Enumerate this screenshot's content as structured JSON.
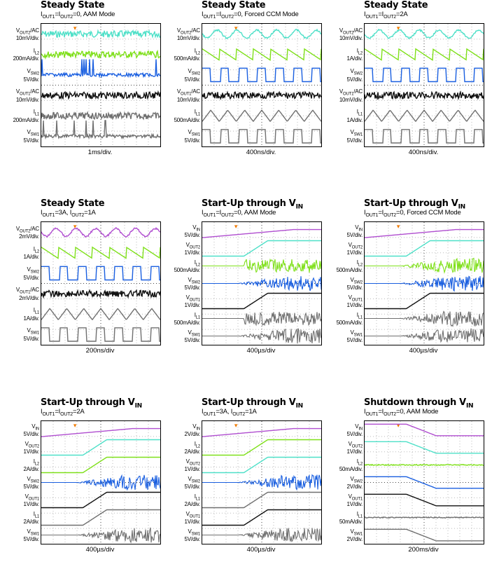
{
  "colors": {
    "purple": "#b04fd0",
    "cyan": "#4fe0c8",
    "green": "#7fe01a",
    "blue": "#1a5fe0",
    "black": "#111111",
    "gray": "#707070",
    "orange": "#f07a00"
  },
  "panels": [
    {
      "title_main": "Steady State",
      "title_sub": "",
      "cond": [
        [
          "I",
          "OUT1"
        ],
        [
          "=I",
          ""
        ],
        [
          "",
          "OUT2"
        ],
        [
          "=0, AAM Mode",
          ""
        ]
      ],
      "timebase": "1ms/div.",
      "traces": [
        {
          "sig": "V",
          "sub": "OUT2",
          "suffix": "/AC",
          "unit": "10mV/div.",
          "color": "cyan",
          "kind": "noise"
        },
        {
          "sig": "I",
          "sub": "L2",
          "suffix": "",
          "unit": "200mA/div.",
          "color": "green",
          "kind": "noise"
        },
        {
          "sig": "V",
          "sub": "SW2",
          "suffix": "",
          "unit": "5V/div.",
          "color": "blue",
          "kind": "spiky"
        },
        {
          "sig": "V",
          "sub": "OUT1",
          "suffix": "/AC",
          "unit": "10mV/div.",
          "color": "black",
          "kind": "noise"
        },
        {
          "sig": "I",
          "sub": "L1",
          "suffix": "",
          "unit": "200mA/div.",
          "color": "gray",
          "kind": "noise"
        },
        {
          "sig": "V",
          "sub": "SW1",
          "suffix": "",
          "unit": "5V/div.",
          "color": "gray",
          "kind": "spiky"
        }
      ]
    },
    {
      "title_main": "Steady State",
      "title_sub": "",
      "cond": [
        [
          "I",
          "OUT1"
        ],
        [
          "=I",
          ""
        ],
        [
          "",
          "OUT2"
        ],
        [
          "=0, Forced CCM Mode",
          ""
        ]
      ],
      "timebase": "400ns/div.",
      "traces": [
        {
          "sig": "V",
          "sub": "OUT2",
          "suffix": "/AC",
          "unit": "10mV/div.",
          "color": "cyan",
          "kind": "wavy"
        },
        {
          "sig": "I",
          "sub": "L2",
          "suffix": "",
          "unit": "500mA/div.",
          "color": "green",
          "kind": "saw"
        },
        {
          "sig": "V",
          "sub": "SW2",
          "suffix": "",
          "unit": "5V/div.",
          "color": "blue",
          "kind": "pulse"
        },
        {
          "sig": "V",
          "sub": "OUT1",
          "suffix": "/AC",
          "unit": "10mV/div.",
          "color": "black",
          "kind": "noise"
        },
        {
          "sig": "I",
          "sub": "L1",
          "suffix": "",
          "unit": "500mA/div.",
          "color": "gray",
          "kind": "tri"
        },
        {
          "sig": "V",
          "sub": "SW1",
          "suffix": "",
          "unit": "5V/div.",
          "color": "gray",
          "kind": "pulse"
        }
      ]
    },
    {
      "title_main": "Steady State",
      "title_sub": "",
      "cond": [
        [
          "I",
          "OUT1"
        ],
        [
          "=I",
          ""
        ],
        [
          "",
          "OUT2"
        ],
        [
          "=2A",
          ""
        ]
      ],
      "timebase": "400ns/div.",
      "traces": [
        {
          "sig": "V",
          "sub": "OUT2",
          "suffix": "/AC",
          "unit": "10mV/div.",
          "color": "cyan",
          "kind": "wavy"
        },
        {
          "sig": "I",
          "sub": "L2",
          "suffix": "",
          "unit": "1A/div.",
          "color": "green",
          "kind": "saw"
        },
        {
          "sig": "V",
          "sub": "SW2",
          "suffix": "",
          "unit": "5V/div.",
          "color": "blue",
          "kind": "pulse"
        },
        {
          "sig": "V",
          "sub": "OUT1",
          "suffix": "/AC",
          "unit": "10mV/div.",
          "color": "black",
          "kind": "noise"
        },
        {
          "sig": "I",
          "sub": "L1",
          "suffix": "",
          "unit": "1A/div.",
          "color": "gray",
          "kind": "tri"
        },
        {
          "sig": "V",
          "sub": "SW1",
          "suffix": "",
          "unit": "5V/div.",
          "color": "gray",
          "kind": "pulse"
        }
      ]
    },
    {
      "title_main": "Steady State",
      "title_sub": "",
      "cond": [
        [
          "I",
          "OUT1"
        ],
        [
          "=3A, I",
          ""
        ],
        [
          "",
          "OUT2"
        ],
        [
          "=1A",
          ""
        ]
      ],
      "timebase": "200ns/div",
      "traces": [
        {
          "sig": "V",
          "sub": "OUT2",
          "suffix": "/AC",
          "unit": "2mV/div.",
          "color": "purple",
          "kind": "wavy"
        },
        {
          "sig": "I",
          "sub": "L2",
          "suffix": "",
          "unit": "1A/div.",
          "color": "green",
          "kind": "saw"
        },
        {
          "sig": "V",
          "sub": "SW2",
          "suffix": "",
          "unit": "5V/div.",
          "color": "blue",
          "kind": "pulse"
        },
        {
          "sig": "V",
          "sub": "OUT1",
          "suffix": "/AC",
          "unit": "2mV/div.",
          "color": "black",
          "kind": "noise"
        },
        {
          "sig": "I",
          "sub": "L1",
          "suffix": "",
          "unit": "1A/div.",
          "color": "gray",
          "kind": "tri"
        },
        {
          "sig": "V",
          "sub": "SW1",
          "suffix": "",
          "unit": "5V/div.",
          "color": "gray",
          "kind": "pulse"
        }
      ]
    },
    {
      "title_main": "Start-Up through V",
      "title_sub": "IN",
      "cond": [
        [
          "I",
          "OUT1"
        ],
        [
          "=I",
          ""
        ],
        [
          "",
          "OUT2"
        ],
        [
          "=0, AAM Mode",
          ""
        ]
      ],
      "timebase": "400µs/div",
      "traces": [
        {
          "sig": "V",
          "sub": "IN",
          "suffix": "",
          "unit": "5V/div.",
          "color": "purple",
          "kind": "ramp"
        },
        {
          "sig": "V",
          "sub": "OUT2",
          "suffix": "",
          "unit": "1V/div.",
          "color": "cyan",
          "kind": "step"
        },
        {
          "sig": "I",
          "sub": "L2",
          "suffix": "",
          "unit": "500mA/div.",
          "color": "green",
          "kind": "burst"
        },
        {
          "sig": "V",
          "sub": "SW2",
          "suffix": "",
          "unit": "5V/div.",
          "color": "blue",
          "kind": "band"
        },
        {
          "sig": "V",
          "sub": "OUT1",
          "suffix": "",
          "unit": "1V/div.",
          "color": "black",
          "kind": "step"
        },
        {
          "sig": "I",
          "sub": "L1",
          "suffix": "",
          "unit": "500mA/div.",
          "color": "gray",
          "kind": "burst"
        },
        {
          "sig": "V",
          "sub": "SW1",
          "suffix": "",
          "unit": "5V/div.",
          "color": "gray",
          "kind": "band"
        }
      ]
    },
    {
      "title_main": "Start-Up through V",
      "title_sub": "IN",
      "cond": [
        [
          "I",
          "OUT1"
        ],
        [
          "=I",
          ""
        ],
        [
          "",
          "OUT2"
        ],
        [
          "=0, Forced CCM Mode",
          ""
        ]
      ],
      "timebase": "400µs/div",
      "traces": [
        {
          "sig": "V",
          "sub": "IN",
          "suffix": "",
          "unit": "5V/div.",
          "color": "purple",
          "kind": "ramp"
        },
        {
          "sig": "V",
          "sub": "OUT2",
          "suffix": "",
          "unit": "1V/div.",
          "color": "cyan",
          "kind": "step"
        },
        {
          "sig": "I",
          "sub": "L2",
          "suffix": "",
          "unit": "500mA/div.",
          "color": "green",
          "kind": "band"
        },
        {
          "sig": "V",
          "sub": "SW2",
          "suffix": "",
          "unit": "5V/div.",
          "color": "blue",
          "kind": "band"
        },
        {
          "sig": "V",
          "sub": "OUT1",
          "suffix": "",
          "unit": "1V/div.",
          "color": "black",
          "kind": "step"
        },
        {
          "sig": "I",
          "sub": "L1",
          "suffix": "",
          "unit": "500mA/div.",
          "color": "gray",
          "kind": "band"
        },
        {
          "sig": "V",
          "sub": "SW1",
          "suffix": "",
          "unit": "5V/div.",
          "color": "gray",
          "kind": "band"
        }
      ]
    },
    {
      "title_main": "Start-Up through V",
      "title_sub": "IN",
      "cond": [
        [
          "I",
          "OUT1"
        ],
        [
          "=I",
          ""
        ],
        [
          "",
          "OUT2"
        ],
        [
          "=2A",
          ""
        ]
      ],
      "timebase": "400µs/div",
      "traces": [
        {
          "sig": "V",
          "sub": "IN",
          "suffix": "",
          "unit": "5V/div.",
          "color": "purple",
          "kind": "ramp"
        },
        {
          "sig": "V",
          "sub": "OUT2",
          "suffix": "",
          "unit": "1V/div.",
          "color": "cyan",
          "kind": "step"
        },
        {
          "sig": "I",
          "sub": "L2",
          "suffix": "",
          "unit": "2A/div.",
          "color": "green",
          "kind": "step"
        },
        {
          "sig": "V",
          "sub": "SW2",
          "suffix": "",
          "unit": "5V/div.",
          "color": "blue",
          "kind": "band"
        },
        {
          "sig": "V",
          "sub": "OUT1",
          "suffix": "",
          "unit": "1V/div.",
          "color": "black",
          "kind": "step"
        },
        {
          "sig": "I",
          "sub": "L1",
          "suffix": "",
          "unit": "2A/div.",
          "color": "gray",
          "kind": "step"
        },
        {
          "sig": "V",
          "sub": "SW1",
          "suffix": "",
          "unit": "5V/div.",
          "color": "gray",
          "kind": "band"
        }
      ]
    },
    {
      "title_main": "Start-Up through V",
      "title_sub": "IN",
      "cond": [
        [
          "I",
          "OUT1"
        ],
        [
          "=3A, I",
          ""
        ],
        [
          "",
          "OUT2"
        ],
        [
          "=1A",
          ""
        ]
      ],
      "timebase": "400µs/div",
      "traces": [
        {
          "sig": "V",
          "sub": "IN",
          "suffix": "",
          "unit": "2V/div.",
          "color": "purple",
          "kind": "ramp"
        },
        {
          "sig": "I",
          "sub": "L2",
          "suffix": "",
          "unit": "2A/div.",
          "color": "green",
          "kind": "step"
        },
        {
          "sig": "V",
          "sub": "OUT2",
          "suffix": "",
          "unit": "1V/div.",
          "color": "cyan",
          "kind": "step"
        },
        {
          "sig": "V",
          "sub": "SW2",
          "suffix": "",
          "unit": "5V/div.",
          "color": "blue",
          "kind": "band"
        },
        {
          "sig": "I",
          "sub": "L1",
          "suffix": "",
          "unit": "2A/div.",
          "color": "gray",
          "kind": "step"
        },
        {
          "sig": "V",
          "sub": "OUT1",
          "suffix": "",
          "unit": "1V/div.",
          "color": "black",
          "kind": "step"
        },
        {
          "sig": "V",
          "sub": "SW1",
          "suffix": "",
          "unit": "5V/div.",
          "color": "gray",
          "kind": "band"
        }
      ]
    },
    {
      "title_main": "Shutdown through V",
      "title_sub": "IN",
      "cond": [
        [
          "I",
          "OUT1"
        ],
        [
          "=I",
          ""
        ],
        [
          "",
          "OUT2"
        ],
        [
          "=0, AAM Mode",
          ""
        ]
      ],
      "timebase": "200ms/div",
      "traces": [
        {
          "sig": "V",
          "sub": "IN",
          "suffix": "",
          "unit": "5V/div.",
          "color": "purple",
          "kind": "fall"
        },
        {
          "sig": "V",
          "sub": "OUT2",
          "suffix": "",
          "unit": "1V/div.",
          "color": "cyan",
          "kind": "fall"
        },
        {
          "sig": "I",
          "sub": "L2",
          "suffix": "",
          "unit": "50mA/div.",
          "color": "green",
          "kind": "flat"
        },
        {
          "sig": "V",
          "sub": "SW2",
          "suffix": "",
          "unit": "2V/div.",
          "color": "blue",
          "kind": "fall"
        },
        {
          "sig": "V",
          "sub": "OUT1",
          "suffix": "",
          "unit": "1V/div.",
          "color": "black",
          "kind": "fall"
        },
        {
          "sig": "I",
          "sub": "L1",
          "suffix": "",
          "unit": "50mA/div.",
          "color": "gray",
          "kind": "flat"
        },
        {
          "sig": "V",
          "sub": "SW1",
          "suffix": "",
          "unit": "2V/div.",
          "color": "gray",
          "kind": "fall"
        }
      ]
    }
  ]
}
